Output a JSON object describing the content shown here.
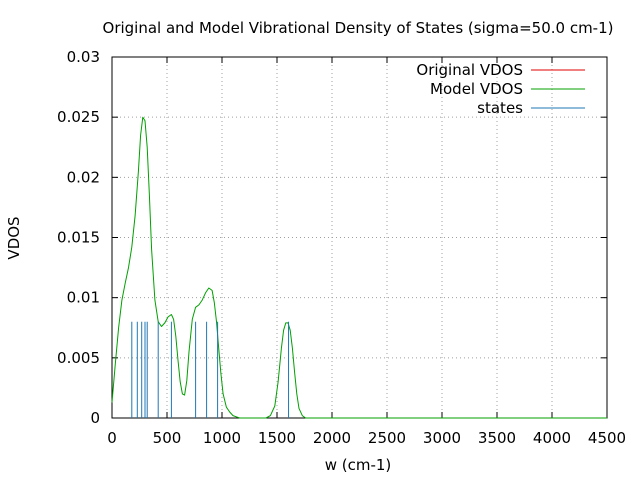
{
  "chart_data": {
    "type": "line",
    "title": "Original and Model Vibrational Density of States (sigma=50.0 cm-1)",
    "xlabel": "w (cm-1)",
    "ylabel": "VDOS",
    "xlim": [
      0,
      4500
    ],
    "ylim": [
      0,
      0.03
    ],
    "xticks": [
      0,
      500,
      1000,
      1500,
      2000,
      2500,
      3000,
      3500,
      4000,
      4500
    ],
    "yticks": [
      0,
      0.005,
      0.01,
      0.015,
      0.02,
      0.025,
      0.03
    ],
    "xtick_labels": [
      "0",
      "500",
      "1000",
      "1500",
      "2000",
      "2500",
      "3000",
      "3500",
      "4000",
      "4500"
    ],
    "ytick_labels": [
      "0",
      "0.005",
      "0.01",
      "0.015",
      "0.02",
      "0.025",
      "0.03"
    ],
    "grid": true,
    "legend_position": "top-right",
    "series": [
      {
        "name": "Original VDOS",
        "color": "#e00000",
        "kind": "line",
        "x": [],
        "y": []
      },
      {
        "name": "Model VDOS",
        "color": "#00a000",
        "kind": "line",
        "x": [
          0,
          30,
          60,
          90,
          120,
          150,
          180,
          210,
          240,
          260,
          280,
          300,
          320,
          340,
          360,
          390,
          420,
          450,
          480,
          510,
          540,
          560,
          580,
          600,
          620,
          640,
          660,
          680,
          700,
          730,
          760,
          790,
          820,
          850,
          880,
          910,
          930,
          950,
          970,
          990,
          1010,
          1040,
          1070,
          1100,
          1130,
          1160,
          1200,
          1300,
          1400,
          1440,
          1480,
          1510,
          1540,
          1560,
          1580,
          1600,
          1620,
          1640,
          1660,
          1680,
          1700,
          1730,
          1760,
          1800,
          2000,
          4500
        ],
        "y": [
          0.0013,
          0.0045,
          0.0075,
          0.0098,
          0.0112,
          0.0125,
          0.0142,
          0.0168,
          0.0205,
          0.0235,
          0.025,
          0.0247,
          0.0225,
          0.0185,
          0.014,
          0.0098,
          0.008,
          0.0076,
          0.0079,
          0.0084,
          0.0086,
          0.0082,
          0.0068,
          0.0048,
          0.003,
          0.002,
          0.0019,
          0.0031,
          0.0055,
          0.0082,
          0.0092,
          0.0094,
          0.0098,
          0.0104,
          0.0108,
          0.0106,
          0.0096,
          0.008,
          0.0058,
          0.0037,
          0.002,
          0.0009,
          0.0005,
          0.0002,
          0.0001,
          0.0,
          0.0,
          0.0,
          0.0,
          0.0002,
          0.001,
          0.003,
          0.0058,
          0.0073,
          0.0079,
          0.0079,
          0.0073,
          0.0058,
          0.0038,
          0.002,
          0.0008,
          0.0002,
          0.0,
          0.0,
          0.0,
          0.0
        ]
      },
      {
        "name": "states",
        "color": "#1f77b4",
        "kind": "impulses",
        "x": [
          180,
          230,
          270,
          300,
          320,
          420,
          540,
          760,
          860,
          960,
          1605
        ],
        "y": [
          0.008,
          0.008,
          0.008,
          0.008,
          0.008,
          0.008,
          0.008,
          0.008,
          0.008,
          0.008,
          0.008
        ]
      }
    ]
  }
}
